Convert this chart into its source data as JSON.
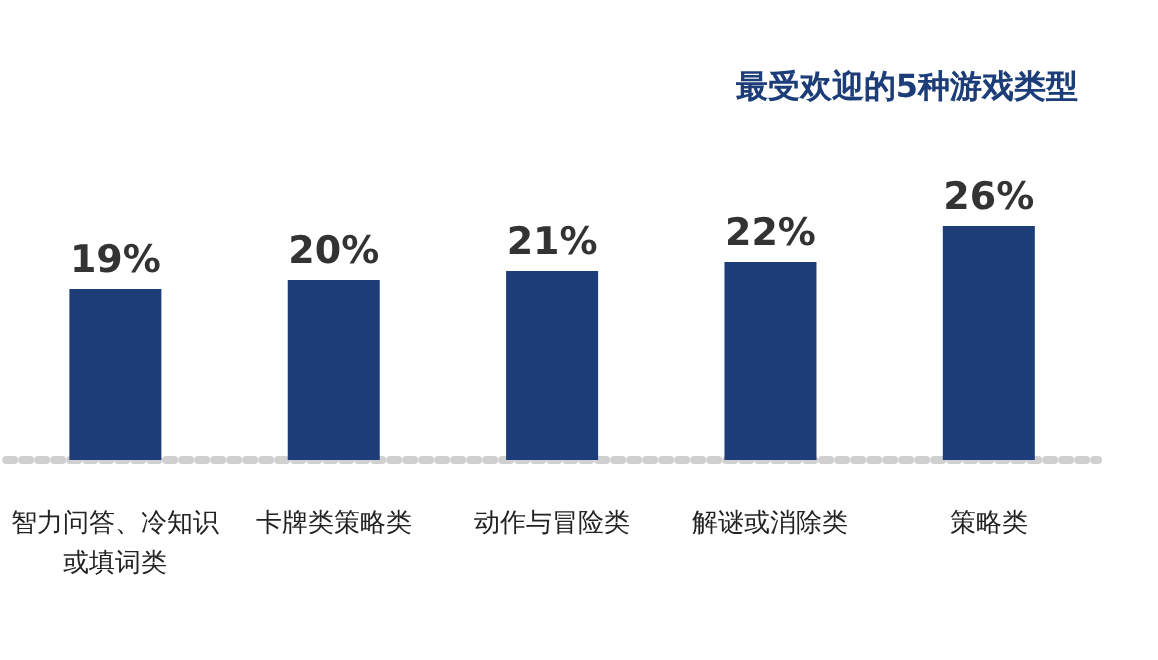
{
  "chart_data": {
    "type": "bar",
    "title": "最受欢迎的5种游戏类型",
    "categories": [
      "智力问答、冷知识或填词类",
      "卡牌类策略类",
      "动作与冒险类",
      "解谜或消除类",
      "策略类"
    ],
    "values": [
      19,
      20,
      21,
      22,
      26
    ],
    "color": "#1c3d78",
    "data_labels": true,
    "value_labels": [
      "19%",
      "20%",
      "21%",
      "22%",
      "26%"
    ]
  }
}
